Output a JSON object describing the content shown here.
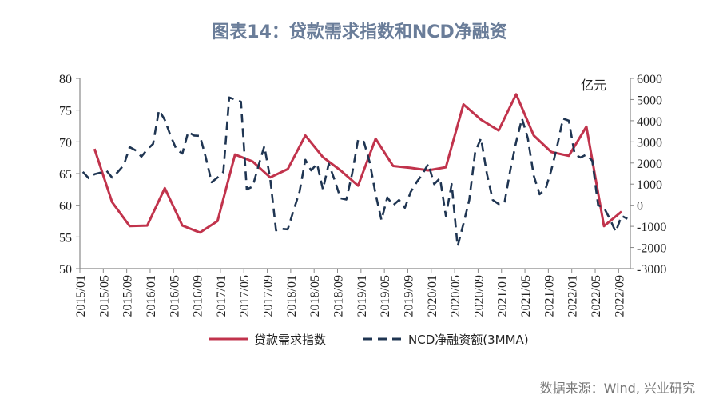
{
  "title": "图表14：贷款需求指数和NCD净融资",
  "source": "数据来源：Wind, 兴业研究",
  "chart_data": {
    "type": "line",
    "title": "图表14：贷款需求指数和NCD净融资",
    "y_left": {
      "min": 50,
      "max": 80,
      "step": 5
    },
    "y_right": {
      "min": -3000,
      "max": 6000,
      "step": 1000,
      "unit": "亿元"
    },
    "x_start": "2015/01",
    "x_end": "2022/10",
    "x_tick_labels": [
      "2015/01",
      "2015/05",
      "2015/09",
      "2016/01",
      "2016/05",
      "2016/09",
      "2017/01",
      "2017/05",
      "2017/09",
      "2018/01",
      "2018/05",
      "2018/09",
      "2019/01",
      "2019/05",
      "2019/09",
      "2020/01",
      "2020/05",
      "2020/09",
      "2021/01",
      "2021/05",
      "2021/09",
      "2022/01",
      "2022/05",
      "2022/09"
    ],
    "grid": false,
    "legend": "bottom",
    "series": [
      {
        "name": "贷款需求指数",
        "axis": "left",
        "color": "#c1334c",
        "style": "solid",
        "frequency": "quarterly",
        "first": "2015/03",
        "values": [
          68.9,
          60.5,
          56.7,
          56.8,
          62.7,
          56.8,
          55.7,
          57.5,
          68.0,
          66.9,
          64.4,
          65.7,
          71.0,
          67.6,
          65.5,
          63.1,
          70.5,
          66.2,
          65.9,
          65.5,
          66.0,
          75.9,
          73.5,
          71.8,
          77.5,
          71.0,
          68.4,
          67.8,
          72.4,
          56.7,
          59.0
        ]
      },
      {
        "name": "NCD净融资额(3MMA)",
        "axis": "right",
        "color": "#1f3552",
        "style": "dashed",
        "frequency": "monthly",
        "first": "2015/01",
        "values": [
          1580,
          1280,
          1470,
          1540,
          1650,
          1310,
          1580,
          1900,
          2750,
          2600,
          2300,
          2640,
          2900,
          4500,
          4040,
          3280,
          2640,
          2450,
          3470,
          3300,
          3280,
          2260,
          1090,
          1310,
          1580,
          5100,
          5000,
          4900,
          750,
          880,
          1880,
          2790,
          1280,
          -1190,
          -1120,
          -1140,
          -240,
          630,
          2150,
          1650,
          1960,
          750,
          1960,
          1200,
          330,
          270,
          1500,
          3100,
          3000,
          2030,
          520,
          -700,
          370,
          0,
          250,
          -120,
          630,
          1090,
          1470,
          1960,
          1000,
          1280,
          -500,
          1000,
          -1950,
          -880,
          250,
          2530,
          3170,
          1500,
          250,
          60,
          100,
          1650,
          3000,
          4100,
          3170,
          1400,
          520,
          750,
          1650,
          2790,
          4100,
          4000,
          2400,
          2260,
          2400,
          2100,
          0,
          -120,
          -640,
          -1260,
          -500,
          -640
        ]
      }
    ]
  }
}
